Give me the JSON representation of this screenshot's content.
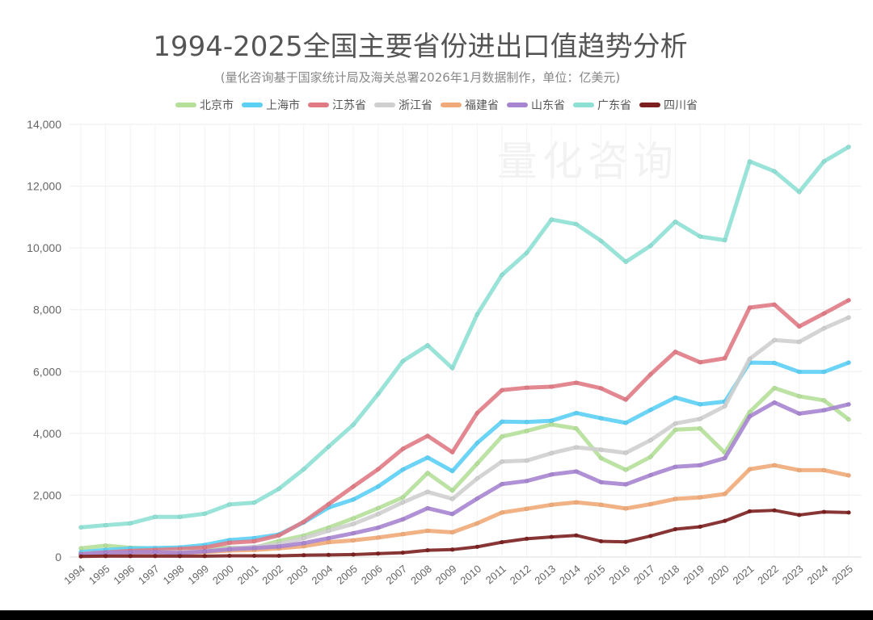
{
  "chart_data": {
    "type": "line",
    "title": "1994-2025全国主要省份进出口值趋势分析",
    "subtitle": "(量化咨询基于国家统计局及海关总署2026年1月数据制作，单位：亿美元)",
    "watermark": "量化咨询",
    "xlabel": "",
    "ylabel": "",
    "ylim": [
      0,
      14000
    ],
    "yticks": [
      "0",
      "2,000",
      "4,000",
      "6,000",
      "8,000",
      "10,000",
      "12,000",
      "14,000"
    ],
    "grid": true,
    "legend_position": "top",
    "categories": [
      "1994",
      "1995",
      "1996",
      "1997",
      "1998",
      "1999",
      "2000",
      "2001",
      "2002",
      "2003",
      "2004",
      "2005",
      "2006",
      "2007",
      "2008",
      "2009",
      "2010",
      "2011",
      "2012",
      "2013",
      "2014",
      "2015",
      "2016",
      "2017",
      "2018",
      "2019",
      "2020",
      "2021",
      "2022",
      "2023",
      "2024",
      "2025"
    ],
    "series": [
      {
        "name": "北京市",
        "color": "#b5e09a",
        "values": [
          280,
          370,
          300,
          280,
          290,
          310,
          300,
          300,
          520,
          690,
          950,
          1250,
          1580,
          1930,
          2720,
          2150,
          3020,
          3900,
          4080,
          4290,
          4160,
          3200,
          2820,
          3240,
          4120,
          4160,
          3370,
          4690,
          5470,
          5200,
          5070,
          4450
        ]
      },
      {
        "name": "上海市",
        "color": "#5ccff5",
        "values": [
          160,
          230,
          280,
          290,
          310,
          390,
          550,
          610,
          730,
          1120,
          1600,
          1860,
          2280,
          2830,
          3220,
          2780,
          3690,
          4380,
          4370,
          4410,
          4660,
          4490,
          4340,
          4760,
          5160,
          4940,
          5030,
          6290,
          6280,
          5990,
          5990,
          6290
        ]
      },
      {
        "name": "江苏省",
        "color": "#e07a85",
        "values": [
          100,
          150,
          200,
          230,
          260,
          310,
          460,
          510,
          700,
          1140,
          1710,
          2280,
          2840,
          3500,
          3920,
          3390,
          4660,
          5400,
          5480,
          5510,
          5640,
          5460,
          5090,
          5910,
          6640,
          6300,
          6430,
          8070,
          8170,
          7460,
          7880,
          8310
        ]
      },
      {
        "name": "浙江省",
        "color": "#cfcfcf",
        "values": [
          100,
          130,
          120,
          150,
          160,
          180,
          280,
          330,
          420,
          610,
          850,
          1070,
          1390,
          1770,
          2110,
          1880,
          2540,
          3090,
          3120,
          3360,
          3550,
          3470,
          3370,
          3780,
          4320,
          4470,
          4880,
          6410,
          7020,
          6960,
          7400,
          7750
        ]
      },
      {
        "name": "福建省",
        "color": "#f0aa78",
        "values": [
          80,
          100,
          120,
          140,
          130,
          160,
          210,
          230,
          280,
          350,
          480,
          540,
          630,
          740,
          850,
          800,
          1090,
          1440,
          1560,
          1690,
          1770,
          1690,
          1570,
          1710,
          1880,
          1930,
          2040,
          2840,
          2970,
          2810,
          2810,
          2640
        ]
      },
      {
        "name": "山东省",
        "color": "#a785d0",
        "values": [
          90,
          140,
          150,
          160,
          130,
          180,
          250,
          290,
          340,
          450,
          610,
          770,
          950,
          1220,
          1580,
          1390,
          1890,
          2360,
          2460,
          2670,
          2770,
          2420,
          2350,
          2650,
          2920,
          2970,
          3200,
          4550,
          5000,
          4640,
          4750,
          4940
        ]
      },
      {
        "name": "广东省",
        "color": "#8ee0d4",
        "values": [
          960,
          1030,
          1090,
          1300,
          1300,
          1400,
          1700,
          1760,
          2210,
          2840,
          3570,
          4280,
          5270,
          6340,
          6850,
          6110,
          7850,
          9130,
          9840,
          10920,
          10770,
          10230,
          9550,
          10070,
          10850,
          10370,
          10250,
          12800,
          12480,
          11810,
          12800,
          13270
        ]
      },
      {
        "name": "四川省",
        "color": "#7b1f1f",
        "values": [
          20,
          30,
          30,
          30,
          30,
          30,
          40,
          40,
          40,
          60,
          70,
          80,
          110,
          140,
          220,
          240,
          330,
          480,
          590,
          650,
          700,
          510,
          490,
          680,
          900,
          980,
          1170,
          1480,
          1510,
          1360,
          1460,
          1440
        ]
      }
    ]
  }
}
